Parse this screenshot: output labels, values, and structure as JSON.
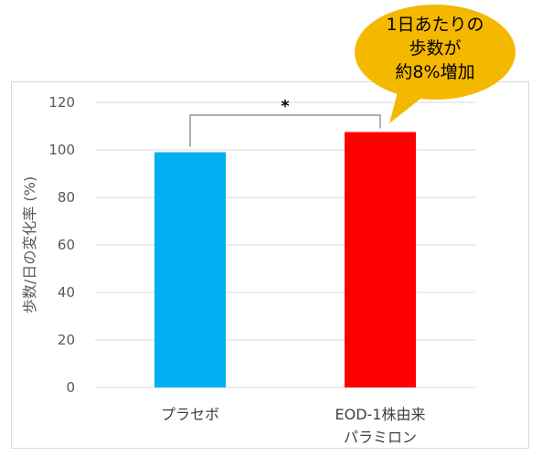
{
  "chart_data": {
    "type": "bar",
    "categories": [
      "プラセボ",
      "EOD-1株由来パラミロン"
    ],
    "category_lines": [
      [
        "プラセボ"
      ],
      [
        "EOD-1株由来",
        "パラミロン"
      ]
    ],
    "values": [
      99,
      107.5
    ],
    "colors": [
      "#00b0f0",
      "#ff0000"
    ],
    "ylabel": "歩数/日の変化率 (%)",
    "ylim": [
      0,
      120
    ],
    "yticks": [
      0,
      20,
      40,
      60,
      80,
      100,
      120
    ],
    "grid": true,
    "significance": {
      "between": [
        0,
        1
      ],
      "label": "*"
    },
    "callout": {
      "lines": [
        "1日あたりの",
        "歩数が",
        "約8%増加"
      ],
      "fill": "#f5b800",
      "points_to": 1
    }
  }
}
